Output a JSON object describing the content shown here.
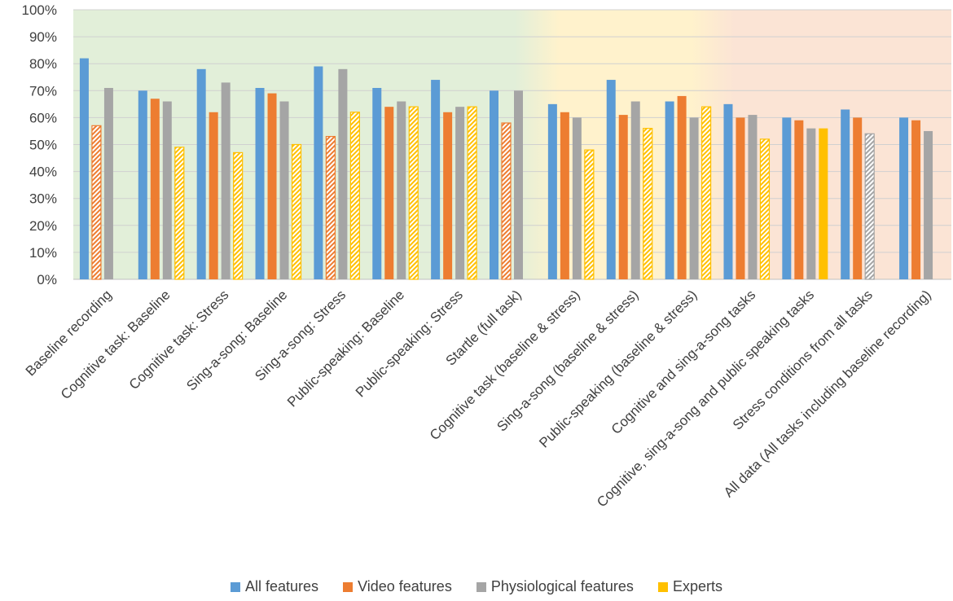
{
  "chart_data": {
    "type": "bar",
    "title": "",
    "xlabel": "",
    "ylabel": "",
    "ylim": [
      0,
      100
    ],
    "y_ticks": [
      "0%",
      "10%",
      "20%",
      "30%",
      "40%",
      "50%",
      "60%",
      "70%",
      "80%",
      "90%",
      "100%"
    ],
    "categories": [
      "Baseline recording",
      "Cognitive task: Baseline",
      "Cognitive task: Stress",
      "Sing-a-song: Baseline",
      "Sing-a-song: Stress",
      "Public-speaking: Baseline",
      "Public-speaking: Stress",
      "Startle (full task)",
      "Cognitive task (baseline & stress)",
      "Sing-a-song (baseline & stress)",
      "Public-speaking (baseline & stress)",
      "Cognitive and sing-a-song tasks",
      "Cognitive, sing-a-song and public speaking tasks",
      "Stress conditions from all tasks",
      "All data (All tasks including baseline recording)"
    ],
    "series": [
      {
        "name": "All features",
        "color": "#5B9BD5",
        "values": [
          82,
          70,
          78,
          71,
          79,
          71,
          74,
          70,
          65,
          74,
          66,
          65,
          60,
          63,
          60
        ],
        "hatched": [
          false,
          false,
          false,
          false,
          false,
          false,
          false,
          false,
          false,
          false,
          false,
          false,
          false,
          false,
          false
        ]
      },
      {
        "name": "Video features",
        "color": "#ED7D31",
        "values": [
          57,
          67,
          62,
          69,
          53,
          64,
          62,
          58,
          62,
          61,
          68,
          60,
          59,
          60,
          59
        ],
        "hatched": [
          true,
          false,
          false,
          false,
          true,
          false,
          false,
          true,
          false,
          false,
          false,
          false,
          false,
          false,
          false
        ]
      },
      {
        "name": "Physiological features",
        "color": "#A5A5A5",
        "values": [
          71,
          66,
          73,
          66,
          78,
          66,
          64,
          70,
          60,
          66,
          60,
          61,
          56,
          54,
          55
        ],
        "hatched": [
          false,
          false,
          false,
          false,
          false,
          false,
          false,
          false,
          false,
          false,
          false,
          false,
          false,
          true,
          false
        ]
      },
      {
        "name": "Experts",
        "color": "#FFC000",
        "values": [
          null,
          49,
          47,
          50,
          62,
          64,
          64,
          null,
          48,
          56,
          64,
          52,
          56,
          null,
          null
        ],
        "hatched": [
          false,
          true,
          true,
          true,
          true,
          true,
          true,
          false,
          true,
          true,
          true,
          true,
          false,
          false,
          false
        ]
      }
    ],
    "background_zones": [
      {
        "from": 0,
        "to": 7,
        "color": "#E2EFD9"
      },
      {
        "from": 8,
        "to": 10,
        "color": "#FFF2CC"
      },
      {
        "from": 11,
        "to": 14,
        "color": "#FBE4D5"
      }
    ],
    "legend_position": "bottom"
  }
}
